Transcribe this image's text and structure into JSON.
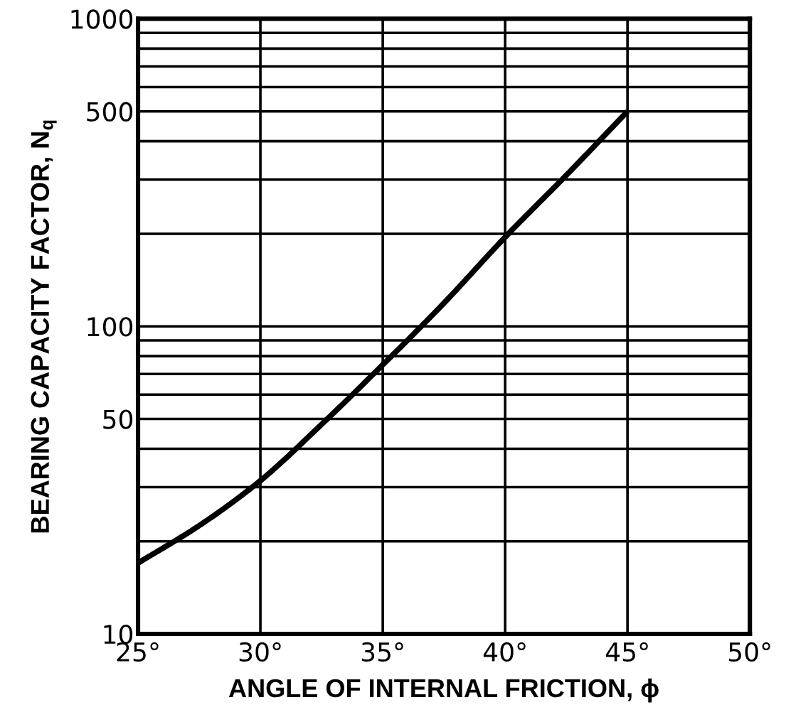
{
  "chart_data": {
    "type": "line",
    "xlabel": "ANGLE OF INTERNAL FRICTION, ϕ",
    "ylabel": "BEARING CAPACITY FACTOR, N$_{q}$",
    "x": [
      25,
      27.5,
      30,
      32.5,
      35,
      37.5,
      40,
      42.5,
      45
    ],
    "series": [
      {
        "color": "#000000",
        "values": [
          17,
          22.5,
          31.5,
          48,
          75,
          119,
          195,
          310,
          500
        ]
      }
    ],
    "log": "y",
    "xlim": [
      25,
      50
    ],
    "ylim": [
      10,
      1000
    ],
    "xticks": [
      {
        "value": 25,
        "label": "25°"
      },
      {
        "value": 30,
        "label": "30°"
      },
      {
        "value": 35,
        "label": "35°"
      },
      {
        "value": 40,
        "label": "40°"
      },
      {
        "value": 45,
        "label": "45°"
      },
      {
        "value": 50,
        "label": "50°"
      }
    ],
    "yticks": [
      10,
      {
        "value": 20,
        "label": null
      },
      {
        "value": 30,
        "label": null
      },
      {
        "value": 40,
        "label": null
      },
      50,
      {
        "value": 60,
        "label": null
      },
      {
        "value": 70,
        "label": null
      },
      {
        "value": 80,
        "label": null
      },
      {
        "value": 90,
        "label": null
      },
      100,
      {
        "value": 200,
        "label": null
      },
      {
        "value": 300,
        "label": null
      },
      {
        "value": 400,
        "label": null
      },
      500,
      {
        "value": 600,
        "label": null
      },
      {
        "value": 700,
        "label": null
      },
      {
        "value": 800,
        "label": null
      },
      {
        "value": 900,
        "label": null
      },
      1000
    ],
    "grid": true,
    "marker": "none",
    "line_style": "solid"
  }
}
